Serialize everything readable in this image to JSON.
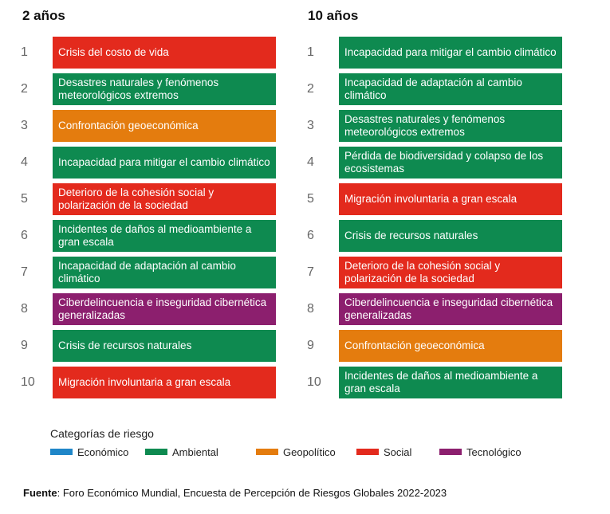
{
  "colors": {
    "economico": "#1f86c8",
    "ambiental": "#0e8a50",
    "geopolitico": "#e47c0e",
    "social": "#e32a1d",
    "tecnologico": "#8c1f6e"
  },
  "left": {
    "title": "2 años",
    "items": [
      {
        "rank": "1",
        "label": "Crisis del costo de vida",
        "category": "social"
      },
      {
        "rank": "2",
        "label": "Desastres naturales y fenómenos meteorológicos extremos",
        "category": "ambiental"
      },
      {
        "rank": "3",
        "label": "Confrontación geoeconómica",
        "category": "geopolitico"
      },
      {
        "rank": "4",
        "label": "Incapacidad para mitigar el cambio climático",
        "category": "ambiental"
      },
      {
        "rank": "5",
        "label": "Deterioro de la cohesión social y polarización de la sociedad",
        "category": "social"
      },
      {
        "rank": "6",
        "label": "Incidentes de daños al medioambiente a gran escala",
        "category": "ambiental"
      },
      {
        "rank": "7",
        "label": "Incapacidad de adaptación al cambio climático",
        "category": "ambiental"
      },
      {
        "rank": "8",
        "label": "Ciberdelincuencia e inseguridad cibernética generalizadas",
        "category": "tecnologico"
      },
      {
        "rank": "9",
        "label": "Crisis de recursos naturales",
        "category": "ambiental"
      },
      {
        "rank": "10",
        "label": "Migración involuntaria a gran escala",
        "category": "social"
      }
    ]
  },
  "right": {
    "title": "10 años",
    "items": [
      {
        "rank": "1",
        "label": "Incapacidad para mitigar el cambio climático",
        "category": "ambiental"
      },
      {
        "rank": "2",
        "label": "Incapacidad de adaptación al cambio climático",
        "category": "ambiental"
      },
      {
        "rank": "3",
        "label": "Desastres naturales y fenómenos meteorológicos extremos",
        "category": "ambiental"
      },
      {
        "rank": "4",
        "label": "Pérdida de biodiversidad y colapso de los ecosistemas",
        "category": "ambiental"
      },
      {
        "rank": "5",
        "label": "Migración involuntaria a gran escala",
        "category": "social"
      },
      {
        "rank": "6",
        "label": "Crisis de recursos naturales",
        "category": "ambiental"
      },
      {
        "rank": "7",
        "label": "Deterioro de la cohesión social y polarización de la sociedad",
        "category": "social"
      },
      {
        "rank": "8",
        "label": "Ciberdelincuencia e inseguridad cibernética generalizadas",
        "category": "tecnologico"
      },
      {
        "rank": "9",
        "label": "Confrontación geoeconómica",
        "category": "geopolitico"
      },
      {
        "rank": "10",
        "label": "Incidentes de daños al medioambiente a gran escala",
        "category": "ambiental"
      }
    ]
  },
  "legend": {
    "title": "Categorías de riesgo",
    "items": [
      {
        "key": "economico",
        "label": "Económico"
      },
      {
        "key": "ambiental",
        "label": "Ambiental"
      },
      {
        "key": "geopolitico",
        "label": "Geopolítico"
      },
      {
        "key": "social",
        "label": "Social"
      },
      {
        "key": "tecnologico",
        "label": "Tecnológico"
      }
    ]
  },
  "source": {
    "label": "Fuente",
    "text": ": Foro Económico Mundial, Encuesta de Percepción de Riesgos Globales 2022-2023"
  }
}
